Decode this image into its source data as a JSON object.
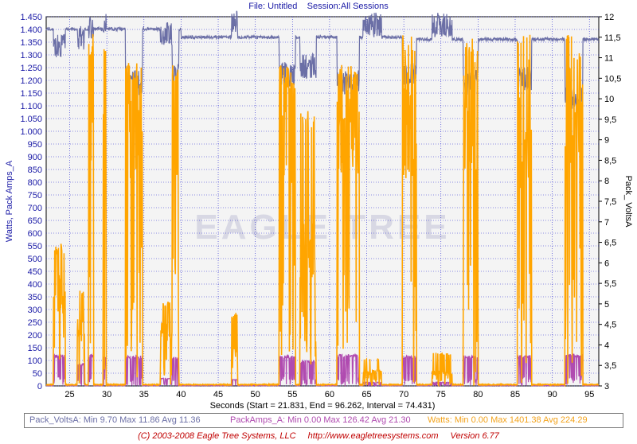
{
  "header": {
    "file": "File: Untitled",
    "session": "Session:All Sessions"
  },
  "chart_data": {
    "type": "line",
    "x_title": "Seconds (Start = 21.831,  End = 96.262, Interval = 74.431)",
    "left_axis_title": "Watts, Pack Amps_A",
    "right_axis_title": "Pack_ VoltsA",
    "xlim": [
      21.831,
      96.262
    ],
    "x_ticks": [
      25,
      30,
      35,
      40,
      45,
      50,
      55,
      60,
      65,
      70,
      75,
      80,
      85,
      90,
      95
    ],
    "x_tick_labels": [
      "25",
      "30",
      "35",
      "40",
      "45",
      "50",
      "55",
      "60",
      "65",
      "70",
      "75",
      "80",
      "85",
      "90",
      "95"
    ],
    "left_ylim": [
      0,
      1450
    ],
    "left_ticks": [
      0,
      50,
      100,
      150,
      200,
      250,
      300,
      350,
      400,
      450,
      500,
      550,
      600,
      650,
      700,
      750,
      800,
      850,
      900,
      950,
      1000,
      1050,
      1100,
      1150,
      1200,
      1250,
      1300,
      1350,
      1400,
      1450
    ],
    "left_tick_labels": [
      "0",
      "50",
      "100",
      "150",
      "200",
      "250",
      "300",
      "350",
      "400",
      "450",
      "500",
      "550",
      "600",
      "650",
      "700",
      "750",
      "800",
      "850",
      "900",
      "950",
      "1.000",
      "1.050",
      "1.100",
      "1.150",
      "1.200",
      "1.250",
      "1.300",
      "1.350",
      "1.400",
      "1.450"
    ],
    "right_ylim": [
      3,
      12
    ],
    "right_ticks": [
      3,
      3.5,
      4,
      4.5,
      5,
      5.5,
      6,
      6.5,
      7,
      7.5,
      8,
      8.5,
      9,
      9.5,
      10,
      10.5,
      11,
      11.5,
      12
    ],
    "right_tick_labels": [
      "3",
      "3,5",
      "4",
      "4,5",
      "5",
      "5,5",
      "6",
      "6,5",
      "7",
      "7,5",
      "8",
      "8,5",
      "9",
      "9,5",
      "10",
      "10,5",
      "11",
      "11,5",
      "12"
    ],
    "grid": true,
    "bursts": [
      {
        "start": 22.8,
        "end": 24.4,
        "watts_peak": 560,
        "watts_mid": 400,
        "amps_peak": 125,
        "volts_low": 11.0
      },
      {
        "start": 26.0,
        "end": 27.0,
        "watts_peak": 380,
        "watts_mid": 250,
        "amps_peak": 90,
        "volts_low": 11.2
      },
      {
        "start": 27.5,
        "end": 28.2,
        "watts_peak": 1401,
        "watts_mid": 1200,
        "amps_peak": 126,
        "volts_low": 11.4
      },
      {
        "start": 29.5,
        "end": 29.9,
        "watts_peak": 1380,
        "watts_mid": 1100,
        "amps_peak": 118,
        "volts_low": 11.5
      },
      {
        "start": 32.5,
        "end": 34.8,
        "watts_peak": 1270,
        "watts_mid": 1100,
        "amps_peak": 120,
        "volts_low": 10.1
      },
      {
        "start": 37.2,
        "end": 39.0,
        "watts_peak": 330,
        "watts_mid": 240,
        "amps_peak": 30,
        "volts_low": 11.3
      },
      {
        "start": 38.8,
        "end": 39.7,
        "watts_peak": 1270,
        "watts_mid": 1150,
        "amps_peak": 115,
        "volts_low": 10.3
      },
      {
        "start": 46.8,
        "end": 47.6,
        "watts_peak": 290,
        "watts_mid": 160,
        "amps_peak": 25,
        "volts_low": 11.6
      },
      {
        "start": 53.2,
        "end": 55.4,
        "watts_peak": 1270,
        "watts_mid": 1100,
        "amps_peak": 120,
        "volts_low": 10.3
      },
      {
        "start": 56.0,
        "end": 58.2,
        "watts_peak": 1080,
        "watts_mid": 600,
        "amps_peak": 100,
        "volts_low": 10.5
      },
      {
        "start": 61.0,
        "end": 64.0,
        "watts_peak": 1270,
        "watts_mid": 1150,
        "amps_peak": 125,
        "volts_low": 10.1
      },
      {
        "start": 64.5,
        "end": 67.0,
        "watts_peak": 110,
        "watts_mid": 60,
        "amps_peak": 15,
        "volts_low": 11.5
      },
      {
        "start": 69.8,
        "end": 71.7,
        "watts_peak": 1380,
        "watts_mid": 1150,
        "amps_peak": 120,
        "volts_low": 10.3
      },
      {
        "start": 73.8,
        "end": 76.5,
        "watts_peak": 130,
        "watts_mid": 60,
        "amps_peak": 15,
        "volts_low": 11.5
      },
      {
        "start": 78.0,
        "end": 80.0,
        "watts_peak": 1380,
        "watts_mid": 1150,
        "amps_peak": 118,
        "volts_low": 10.1
      },
      {
        "start": 85.3,
        "end": 87.2,
        "watts_peak": 1380,
        "watts_mid": 1100,
        "amps_peak": 122,
        "volts_low": 10.2
      },
      {
        "start": 91.7,
        "end": 94.1,
        "watts_peak": 1390,
        "watts_mid": 1150,
        "amps_peak": 126,
        "volts_low": 9.7
      }
    ]
  },
  "legend": {
    "volts": "Pack_VoltsA:  Min 9.70   Max 11.86   Avg 11.36",
    "amps": "PackAmps_A:  Min 0.00   Max 126.42   Avg 21.30",
    "watts": "Watts:  Min 0.00   Max 1401.38   Avg 224.29"
  },
  "footer": {
    "copyright": "(C) 2003-2008 Eagle Tree Systems, LLC",
    "url": "http://www.eagletreesystems.com",
    "version": "Version 6.77"
  },
  "colors": {
    "plot_bg": "#f4f4f4",
    "grid": "#2020d0",
    "axis_text": "#1a1aa6",
    "volts_line": "#6b6fa6",
    "amps_line": "#b04bb0",
    "watts_line": "#ffa500"
  }
}
